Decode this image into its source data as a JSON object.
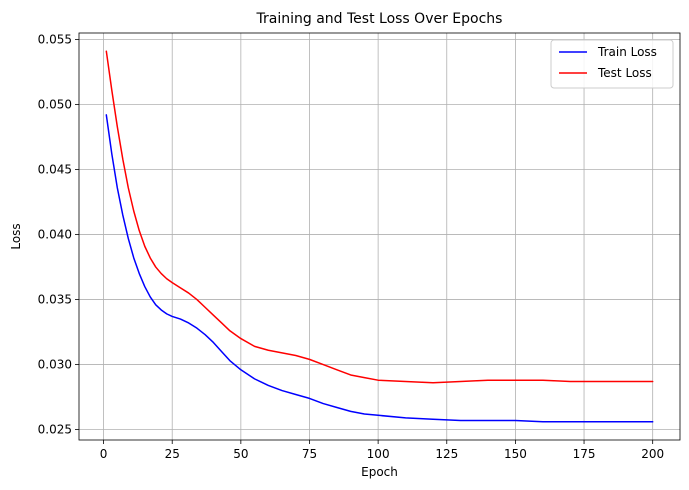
{
  "chart_data": {
    "type": "line",
    "title": "Training and Test Loss Over Epochs",
    "xlabel": "Epoch",
    "ylabel": "Loss",
    "xlim": [
      -8.95,
      209.95
    ],
    "ylim": [
      0.0242,
      0.0555
    ],
    "xticks": [
      0,
      25,
      50,
      75,
      100,
      125,
      150,
      175,
      200
    ],
    "xtick_labels": [
      "0",
      "25",
      "50",
      "75",
      "100",
      "125",
      "150",
      "175",
      "200"
    ],
    "yticks": [
      0.025,
      0.03,
      0.035,
      0.04,
      0.045,
      0.05,
      0.055
    ],
    "ytick_labels": [
      "0.025",
      "0.030",
      "0.035",
      "0.040",
      "0.045",
      "0.050",
      "0.055"
    ],
    "grid": true,
    "legend_position": "top-right",
    "series": [
      {
        "name": "Train Loss",
        "color": "#0000ff",
        "x": [
          1,
          3,
          5,
          7,
          9,
          11,
          13,
          15,
          17,
          19,
          21,
          23,
          25,
          28,
          31,
          34,
          37,
          40,
          43,
          46,
          50,
          55,
          60,
          65,
          70,
          75,
          80,
          85,
          90,
          95,
          100,
          110,
          120,
          130,
          140,
          150,
          160,
          170,
          180,
          190,
          200
        ],
        "y": [
          0.0492,
          0.0462,
          0.0436,
          0.0415,
          0.0397,
          0.0382,
          0.037,
          0.036,
          0.0352,
          0.0346,
          0.0342,
          0.0339,
          0.0337,
          0.0335,
          0.0332,
          0.0328,
          0.0323,
          0.0317,
          0.031,
          0.0303,
          0.0296,
          0.0289,
          0.0284,
          0.028,
          0.0277,
          0.0274,
          0.027,
          0.0267,
          0.0264,
          0.0262,
          0.0261,
          0.0259,
          0.0258,
          0.0257,
          0.0257,
          0.0257,
          0.0256,
          0.0256,
          0.0256,
          0.0256,
          0.0256
        ]
      },
      {
        "name": "Test Loss",
        "color": "#ff0000",
        "x": [
          1,
          3,
          5,
          7,
          9,
          11,
          13,
          15,
          17,
          19,
          21,
          23,
          25,
          28,
          31,
          34,
          37,
          40,
          43,
          46,
          50,
          55,
          60,
          65,
          70,
          75,
          80,
          85,
          90,
          95,
          100,
          110,
          120,
          130,
          140,
          150,
          160,
          170,
          180,
          190,
          200
        ],
        "y": [
          0.0541,
          0.0511,
          0.0483,
          0.0458,
          0.0436,
          0.0418,
          0.0403,
          0.0391,
          0.0382,
          0.0375,
          0.037,
          0.0366,
          0.0363,
          0.0359,
          0.0355,
          0.035,
          0.0344,
          0.0338,
          0.0332,
          0.0326,
          0.032,
          0.0314,
          0.0311,
          0.0309,
          0.0307,
          0.0304,
          0.03,
          0.0296,
          0.0292,
          0.029,
          0.0288,
          0.0287,
          0.0286,
          0.0287,
          0.0288,
          0.0288,
          0.0288,
          0.0287,
          0.0287,
          0.0287,
          0.0287
        ]
      }
    ]
  }
}
